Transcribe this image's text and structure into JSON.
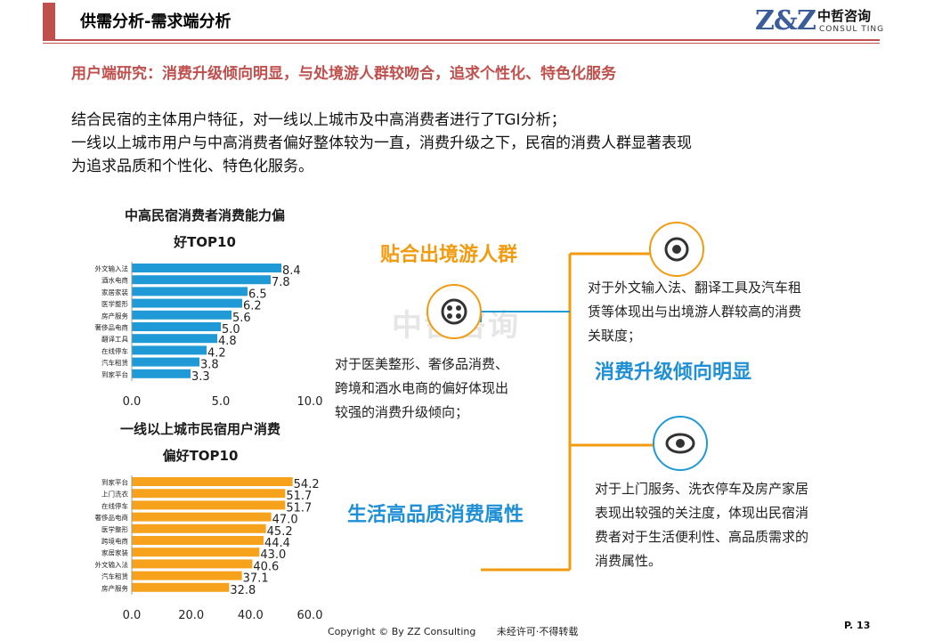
{
  "header": {
    "title": "供需分析-需求端分析",
    "logo_mark": "Z&Z",
    "logo_cn": "中哲咨询",
    "logo_en": "CONSUL TING"
  },
  "subheading": "用户端研究：消费升级倾向明显，与处境游人群较吻合，追求个性化、特色化服务",
  "paragraph": {
    "line1": "结合民宿的主体用户特征，对一线以上城市及中高消费者进行了TGI分析；",
    "line2": "一线以上城市用户与中高消费者偏好整体较为一直，消费升级之下，民宿的消费人群显著表现",
    "line3": "为追求品质和个性化、特色化服务。"
  },
  "chart_data": [
    {
      "type": "bar",
      "orientation": "horizontal",
      "title": "中高民宿消费者消费能力偏好TOP10",
      "title_line1": "中高民宿消费者消费能力偏",
      "title_line2": "好TOP10",
      "categories": [
        "外文输入法",
        "酒水电商",
        "家居家装",
        "医学整形",
        "房产服务",
        "奢侈品电商",
        "翻译工具",
        "在线停车",
        "汽车租赁",
        "到家平台"
      ],
      "values": [
        8.4,
        7.8,
        6.5,
        6.2,
        5.6,
        5.0,
        4.8,
        4.2,
        3.8,
        3.3
      ],
      "value_labels": [
        "8.4",
        "7.8",
        "6.5",
        "6.2",
        "5.6",
        "5.0",
        "4.8",
        "4.2",
        "3.8",
        "3.3"
      ],
      "xlim": [
        0,
        10
      ],
      "x_ticks": [
        "0.0",
        "5.0",
        "10.0"
      ],
      "color": "#1f9ad6"
    },
    {
      "type": "bar",
      "orientation": "horizontal",
      "title": "一线以上城市民宿用户消费偏好TOP10",
      "title_line1": "一线以上城市民宿用户消费",
      "title_line2": "偏好TOP10",
      "categories": [
        "到家平台",
        "上门洗衣",
        "在线停车",
        "奢侈品电商",
        "医学整形",
        "跨境电商",
        "家居家装",
        "外文输入法",
        "汽车租赁",
        "房产服务"
      ],
      "values": [
        54.2,
        51.7,
        51.7,
        47.0,
        45.2,
        44.4,
        43.0,
        40.6,
        37.1,
        32.8
      ],
      "value_labels": [
        "54.2",
        "51.7",
        "51.7",
        "47.0",
        "45.2",
        "44.4",
        "43.0",
        "40.6",
        "37.1",
        "32.8"
      ],
      "xlim": [
        0,
        60
      ],
      "x_ticks": [
        "0.0",
        "20.0",
        "40.0",
        "60.0"
      ],
      "color": "#f6a21c"
    }
  ],
  "diagram": {
    "heading_top": "贴合出境游人群",
    "left_text1": "对于医美整形、奢侈品消费、",
    "left_text2": "跨境和酒水电商的偏好体现出",
    "left_text3": "较强的消费升级倾向；",
    "right_top_text1": "对于外文输入法、翻译工具及汽车租",
    "right_top_text2": "赁等体现出与出境游人群较高的消费",
    "right_top_text3": "关联度；",
    "heading_mid": "消费升级倾向明显",
    "heading_bottom": "生活高品质消费属性",
    "right_bottom_text1": "对于上门服务、洗衣停车及房产家居",
    "right_bottom_text2": "表现出较强的关注度，体现出民宿消",
    "right_bottom_text3": "费者对于生活便利性、高品质需求的",
    "right_bottom_text4": "消费属性。",
    "watermark": "中哲咨询"
  },
  "footer": {
    "copyright": "Copyright © By  ZZ Consulting",
    "notice": "未经许可·不得转载",
    "page": "P. 13"
  },
  "colors": {
    "accent": "#c0504d",
    "blue": "#1f9ad6",
    "orange": "#f6a21c",
    "line": "#f29b10"
  }
}
